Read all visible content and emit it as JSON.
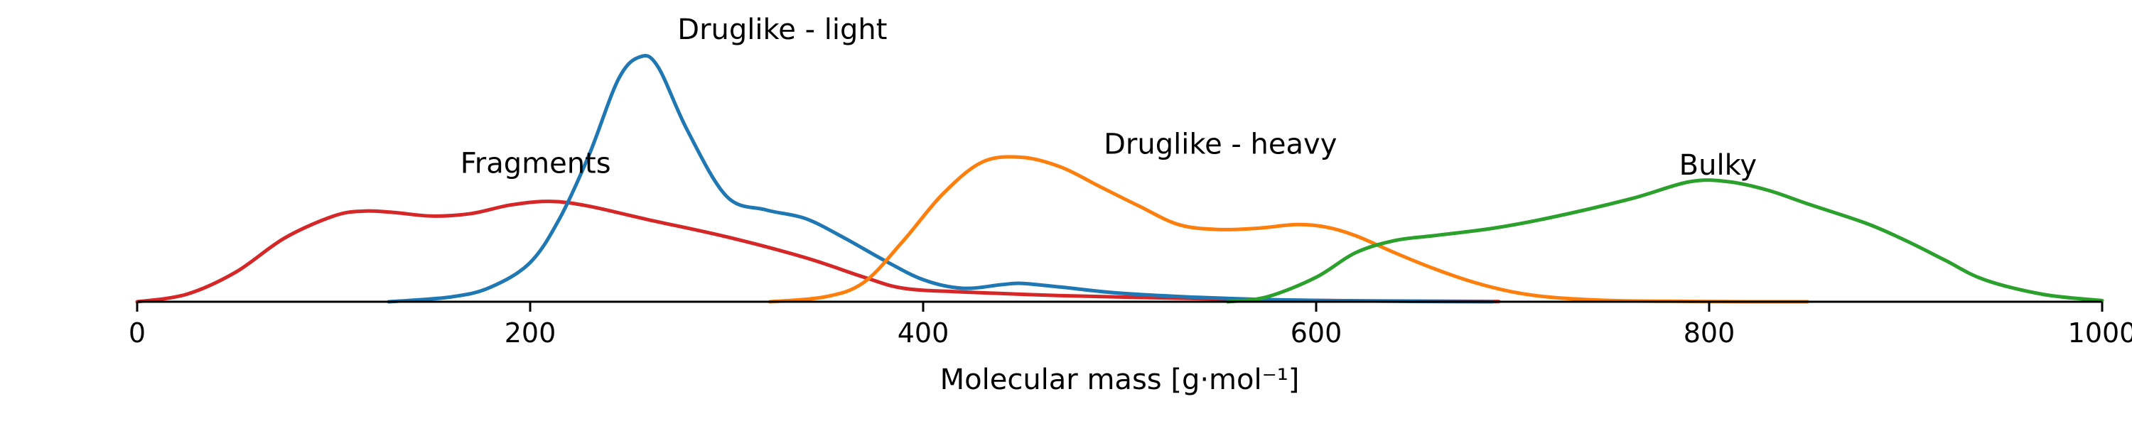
{
  "chart_data": {
    "type": "line",
    "title": "",
    "xlabel": "Molecular mass [g·mol⁻¹]",
    "ylabel": "",
    "xlim": [
      0,
      1000
    ],
    "ylim": [
      0,
      1
    ],
    "grid": false,
    "legend": "none",
    "x_ticks": [
      0,
      200,
      400,
      600,
      800,
      1000
    ],
    "x_tick_labels": [
      "0",
      "200",
      "400",
      "600",
      "800",
      "1000"
    ],
    "series": [
      {
        "name": "Fragments",
        "color": "#d62728",
        "x": [
          0,
          25,
          50,
          75,
          100,
          115,
          130,
          150,
          170,
          190,
          210,
          230,
          260,
          300,
          340,
          370,
          390,
          420,
          470,
          520,
          570,
          620,
          693
        ],
        "y": [
          0.0,
          0.03,
          0.12,
          0.26,
          0.35,
          0.37,
          0.365,
          0.35,
          0.36,
          0.395,
          0.41,
          0.39,
          0.335,
          0.265,
          0.18,
          0.1,
          0.055,
          0.04,
          0.025,
          0.016,
          0.008,
          0.004,
          0.001
        ]
      },
      {
        "name": "Druglike - light",
        "color": "#1f77b4",
        "x": [
          128,
          160,
          180,
          200,
          215,
          230,
          245,
          256,
          265,
          280,
          300,
          320,
          340,
          360,
          380,
          400,
          420,
          440,
          450,
          470,
          500,
          540,
          580,
          640,
          690
        ],
        "y": [
          0.0,
          0.02,
          0.06,
          0.16,
          0.34,
          0.6,
          0.91,
          1.0,
          0.96,
          0.7,
          0.43,
          0.375,
          0.34,
          0.26,
          0.17,
          0.09,
          0.055,
          0.07,
          0.075,
          0.06,
          0.035,
          0.018,
          0.008,
          0.002,
          0.0
        ]
      },
      {
        "name": "Druglike - heavy",
        "color": "#ff7f0e",
        "x": [
          322,
          350,
          370,
          390,
          410,
          430,
          450,
          470,
          490,
          510,
          530,
          550,
          570,
          590,
          605,
          620,
          640,
          660,
          680,
          700,
          720,
          750,
          780,
          820,
          850
        ],
        "y": [
          0.0,
          0.02,
          0.08,
          0.25,
          0.44,
          0.57,
          0.59,
          0.55,
          0.47,
          0.39,
          0.315,
          0.295,
          0.3,
          0.315,
          0.305,
          0.27,
          0.2,
          0.135,
          0.08,
          0.04,
          0.018,
          0.005,
          0.002,
          0.0,
          0.0
        ]
      },
      {
        "name": "Bulky",
        "color": "#2ca02c",
        "x": [
          555,
          575,
          600,
          620,
          640,
          660,
          690,
          720,
          760,
          790,
          810,
          830,
          850,
          880,
          900,
          920,
          940,
          970,
          1000
        ],
        "y": [
          0.0,
          0.02,
          0.1,
          0.2,
          0.25,
          0.27,
          0.3,
          0.345,
          0.42,
          0.49,
          0.49,
          0.455,
          0.4,
          0.32,
          0.25,
          0.17,
          0.09,
          0.03,
          0.005
        ]
      }
    ],
    "annotations": [
      {
        "text": "Fragments",
        "series": 0
      },
      {
        "text": "Druglike - light",
        "series": 1
      },
      {
        "text": "Druglike - heavy",
        "series": 2
      },
      {
        "text": "Bulky",
        "series": 3
      }
    ]
  }
}
